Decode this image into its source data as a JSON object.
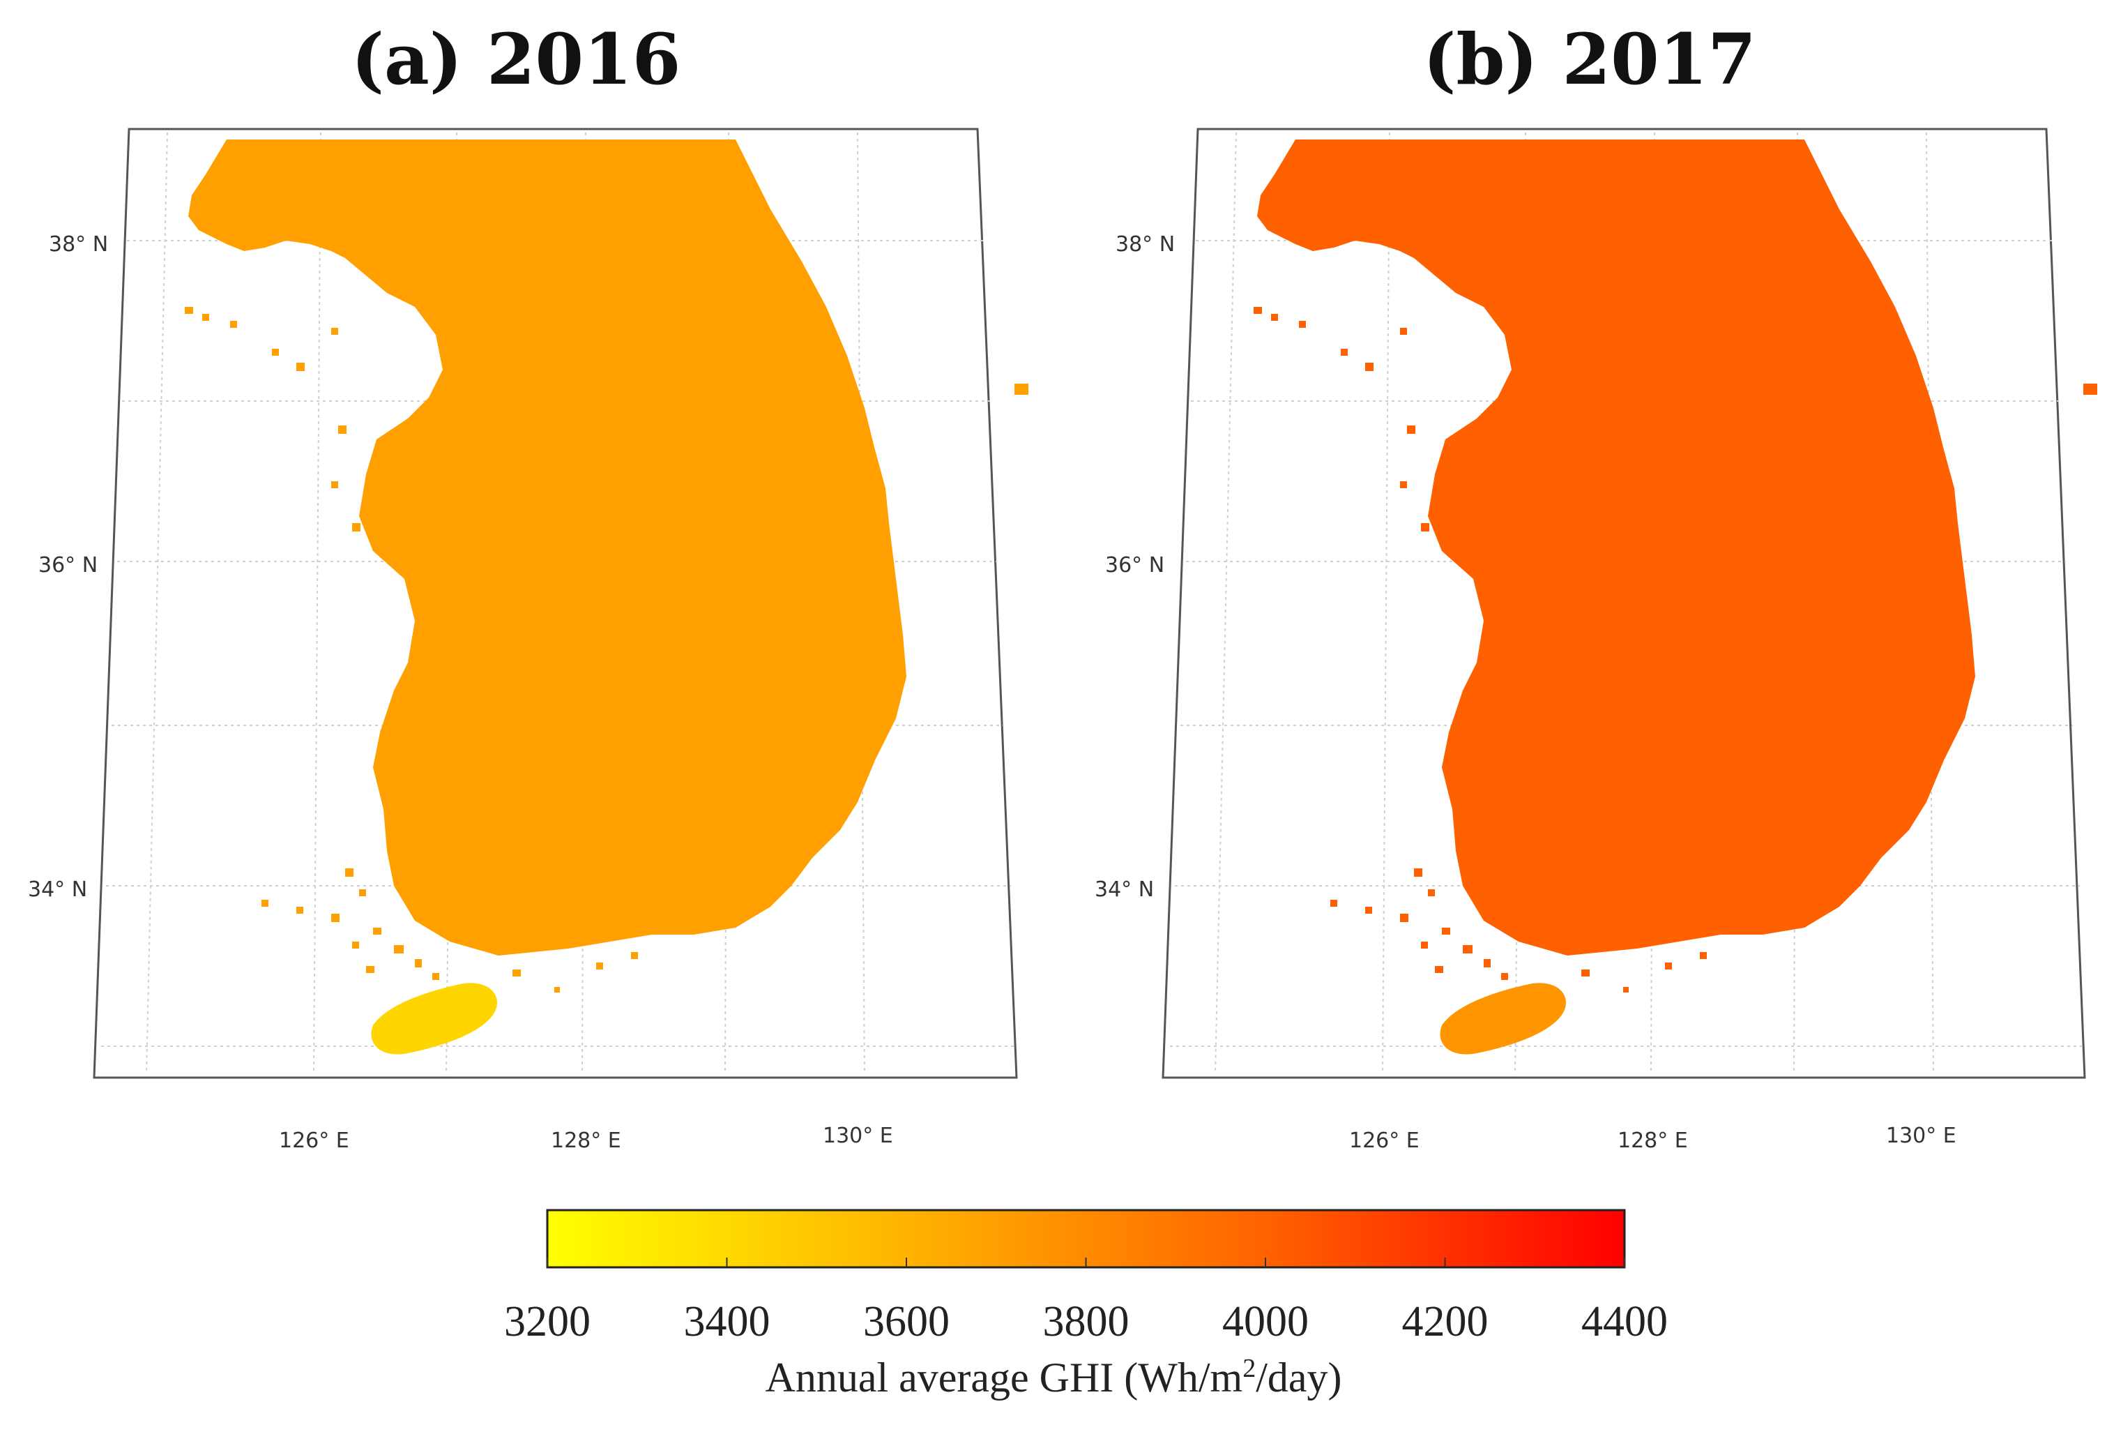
{
  "panels": [
    {
      "id": "a",
      "title": "(a) 2016",
      "lat_labels": [
        "38° N",
        "36° N",
        "34° N"
      ],
      "lon_labels": [
        "126° E",
        "128° E",
        "130° E"
      ],
      "ghi_typical": 3650,
      "ghi_jeju": 3400
    },
    {
      "id": "b",
      "title": "(b) 2017",
      "lat_labels": [
        "38° N",
        "36° N",
        "34° N"
      ],
      "lon_labels": [
        "126° E",
        "128° E",
        "130° E"
      ],
      "ghi_typical": 3950,
      "ghi_jeju": 3700
    }
  ],
  "colorbar": {
    "ticks": [
      "3200",
      "3400",
      "3600",
      "3800",
      "4000",
      "4200",
      "4400"
    ],
    "min": 3200,
    "max": 4400,
    "low_color": "#ffff00",
    "high_color": "#ff0000",
    "title_prefix": "Annual average GHI (Wh/m",
    "title_sup": "2",
    "title_suffix": "/day)"
  }
}
